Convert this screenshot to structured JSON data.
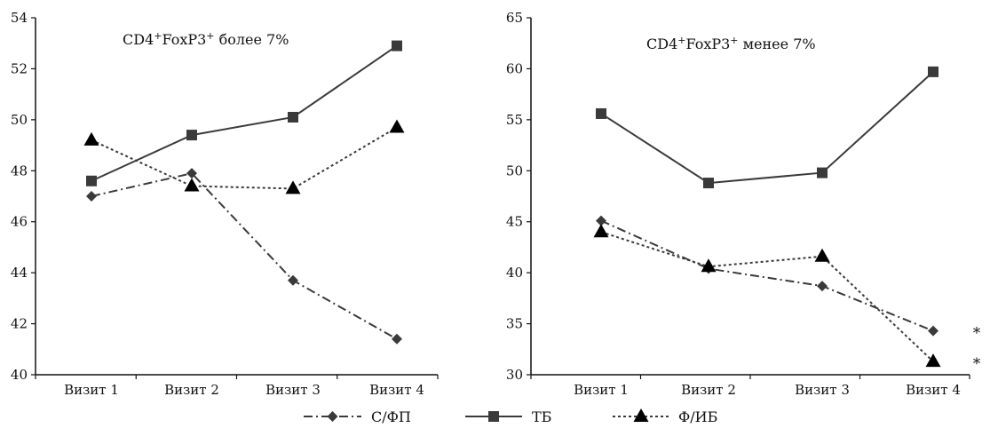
{
  "chart_data": [
    {
      "type": "line",
      "title": "CD4+FoxP3+ более 7%",
      "title_parts": {
        "base": "CD4",
        "sup1": "+",
        "mid": "FoxP3",
        "sup2": "+",
        "tail": " более 7%"
      },
      "categories": [
        "Визит 1",
        "Визит 2",
        "Визит 3",
        "Визит 4"
      ],
      "ylim": [
        40,
        54
      ],
      "yticks": [
        40,
        42,
        44,
        46,
        48,
        50,
        52,
        54
      ],
      "grid": false,
      "series": [
        {
          "name": "С/ФП",
          "values": [
            47.0,
            47.9,
            43.7,
            41.4
          ]
        },
        {
          "name": "ТБ",
          "values": [
            47.6,
            49.4,
            50.1,
            52.9
          ]
        },
        {
          "name": "Ф/ИБ",
          "values": [
            49.2,
            47.4,
            47.3,
            49.7
          ]
        }
      ],
      "annotations": []
    },
    {
      "type": "line",
      "title": "CD4+FoxP3+ менее 7%",
      "title_parts": {
        "base": "CD4",
        "sup1": "+",
        "mid": "FoxP3",
        "sup2": "+",
        "tail": " менее 7%"
      },
      "categories": [
        "Визит 1",
        "Визит 2",
        "Визит 3",
        "Визит 4"
      ],
      "ylim": [
        30,
        65
      ],
      "yticks": [
        30,
        35,
        40,
        45,
        50,
        55,
        60,
        65
      ],
      "grid": false,
      "series": [
        {
          "name": "С/ФП",
          "values": [
            45.1,
            40.4,
            38.7,
            34.3
          ]
        },
        {
          "name": "ТБ",
          "values": [
            55.6,
            48.8,
            49.8,
            59.7
          ]
        },
        {
          "name": "Ф/ИБ",
          "values": [
            44.0,
            40.6,
            41.6,
            31.3
          ]
        }
      ],
      "annotations": [
        {
          "text": "*",
          "series": "С/ФП",
          "category": "Визит 4"
        },
        {
          "text": "*",
          "series": "Ф/ИБ",
          "category": "Визит 4"
        }
      ]
    }
  ],
  "legend": {
    "placement": "bottom-center",
    "items": [
      {
        "label": "С/ФП",
        "line": "dash-dot",
        "marker": "diamond"
      },
      {
        "label": "ТБ",
        "line": "solid",
        "marker": "square"
      },
      {
        "label": "Ф/ИБ",
        "line": "dotted",
        "marker": "triangle"
      }
    ]
  },
  "colors": {
    "line": "#3a3a3a",
    "marker": "#3a3a3a",
    "axis": "#111111"
  }
}
